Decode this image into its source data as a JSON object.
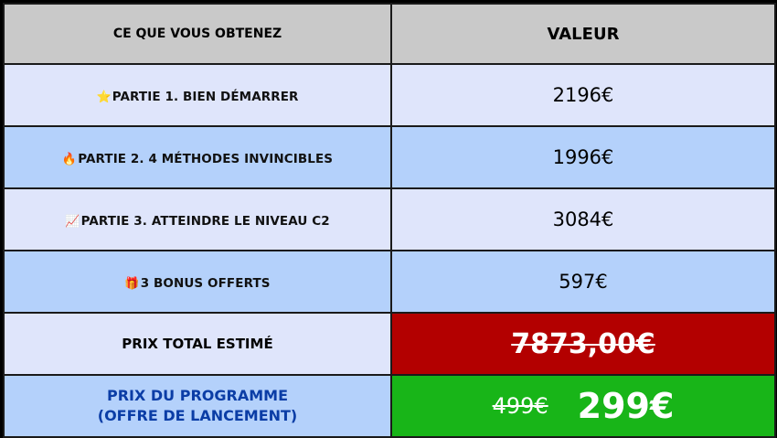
{
  "header": {
    "col1": "CE QUE VOUS OBTENEZ",
    "col2": "VALEUR"
  },
  "rows": [
    {
      "icon": "⭐",
      "icon_name": "star-icon",
      "label": "PARTIE 1. BIEN DÉMARRER",
      "value": "2196€"
    },
    {
      "icon": "🔥",
      "icon_name": "fire-icon",
      "label": "PARTIE 2. 4 MÉTHODES INVINCIBLES",
      "value": "1996€"
    },
    {
      "icon": "📈",
      "icon_name": "chart-increasing-icon",
      "label": "PARTIE 3. ATTEINDRE LE NIVEAU C2",
      "value": "3084€"
    },
    {
      "icon": "🎁",
      "icon_name": "gift-icon",
      "label": "3 BONUS OFFERTS",
      "value": "597€"
    }
  ],
  "total": {
    "label": "PRIX TOTAL ESTIMÉ",
    "value": "7873,00€"
  },
  "program": {
    "label_line1": "PRIX DU PROGRAMME",
    "label_line2": "(OFFRE DE LANCEMENT)",
    "old_price": "499€",
    "new_price": "299€"
  },
  "colors": {
    "header_bg": "#c9c9c9",
    "row_light": "#dfe5fb",
    "row_blue": "#b4d1fb",
    "total_red": "#b30000",
    "program_green": "#18b518",
    "program_label_blue": "#0b3da6"
  }
}
